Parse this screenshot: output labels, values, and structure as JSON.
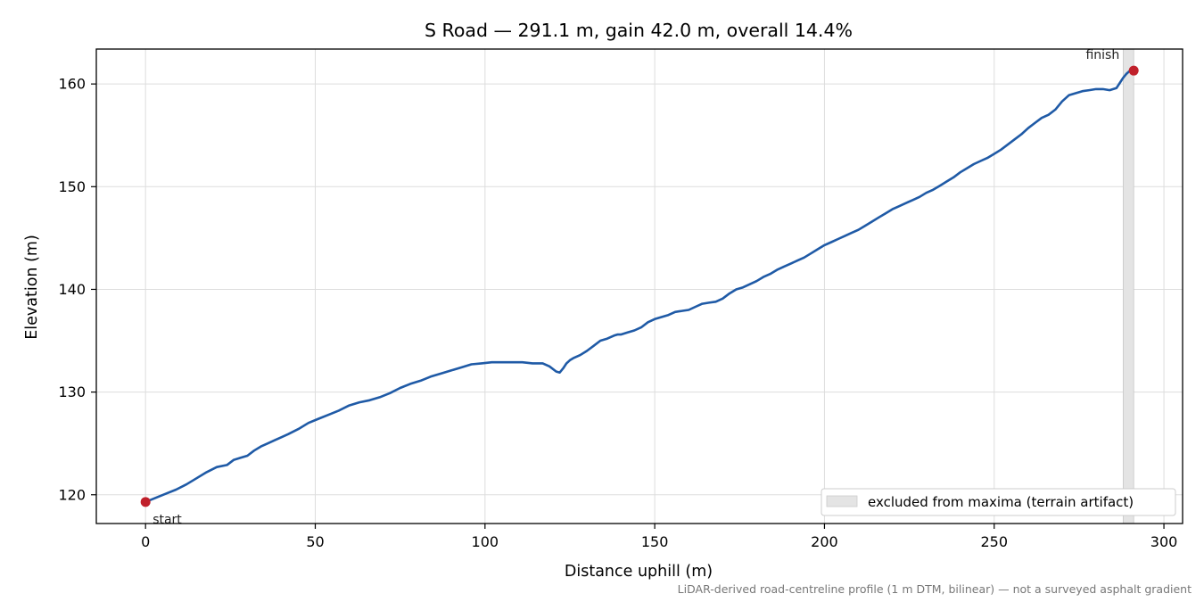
{
  "chart_data": {
    "type": "line",
    "title": "S Road — 291.1 m, gain 42.0 m, overall 14.4%",
    "xlabel": "Distance uphill (m)",
    "ylabel": "Elevation (m)",
    "xlim": [
      -14.5,
      305.5
    ],
    "ylim": [
      117.2,
      163.4
    ],
    "xticks": [
      0,
      50,
      100,
      150,
      200,
      250,
      300
    ],
    "yticks": [
      120,
      130,
      140,
      150,
      160
    ],
    "grid": true,
    "line_color": "#1f5aa6",
    "marker_color": "#c0202b",
    "span_color": "#e4e4e4",
    "series": [
      {
        "x": [
          0,
          3,
          6,
          9,
          12,
          15,
          18,
          21,
          24,
          26,
          28,
          30,
          32,
          34,
          36,
          38,
          40,
          42,
          45,
          48,
          51,
          54,
          57,
          60,
          63,
          66,
          69,
          72,
          75,
          78,
          81,
          84,
          87,
          90,
          93,
          96,
          99,
          102,
          105,
          108,
          111,
          114,
          117,
          119,
          121,
          122,
          123,
          124,
          125,
          126,
          128,
          130,
          132,
          134,
          136,
          138,
          139,
          140,
          142,
          144,
          146,
          148,
          150,
          152,
          154,
          156,
          158,
          160,
          162,
          164,
          166,
          168,
          170,
          172,
          174,
          176,
          178,
          180,
          182,
          184,
          186,
          188,
          190,
          192,
          194,
          196,
          198,
          200,
          202,
          204,
          206,
          208,
          210,
          212,
          214,
          216,
          218,
          220,
          222,
          224,
          226,
          228,
          230,
          232,
          234,
          236,
          238,
          240,
          242,
          244,
          246,
          248,
          250,
          252,
          254,
          256,
          258,
          260,
          262,
          264,
          266,
          268,
          270,
          272,
          274,
          276,
          278,
          280,
          282,
          284,
          286,
          287,
          288,
          289,
          290,
          291.1
        ],
        "y": [
          119.3,
          119.7,
          120.1,
          120.5,
          121.0,
          121.6,
          122.2,
          122.7,
          122.9,
          123.4,
          123.6,
          123.8,
          124.3,
          124.7,
          125.0,
          125.3,
          125.6,
          125.9,
          126.4,
          127.0,
          127.4,
          127.8,
          128.2,
          128.7,
          129.0,
          129.2,
          129.5,
          129.9,
          130.4,
          130.8,
          131.1,
          131.5,
          131.8,
          132.1,
          132.4,
          132.7,
          132.8,
          132.9,
          132.9,
          132.9,
          132.9,
          132.8,
          132.8,
          132.5,
          132.0,
          131.9,
          132.3,
          132.8,
          133.1,
          133.3,
          133.6,
          134.0,
          134.5,
          135.0,
          135.2,
          135.5,
          135.6,
          135.6,
          135.8,
          136.0,
          136.3,
          136.8,
          137.1,
          137.3,
          137.5,
          137.8,
          137.9,
          138.0,
          138.3,
          138.6,
          138.7,
          138.8,
          139.1,
          139.6,
          140.0,
          140.2,
          140.5,
          140.8,
          141.2,
          141.5,
          141.9,
          142.2,
          142.5,
          142.8,
          143.1,
          143.5,
          143.9,
          144.3,
          144.6,
          144.9,
          145.2,
          145.5,
          145.8,
          146.2,
          146.6,
          147.0,
          147.4,
          147.8,
          148.1,
          148.4,
          148.7,
          149.0,
          149.4,
          149.7,
          150.1,
          150.5,
          150.9,
          151.4,
          151.8,
          152.2,
          152.5,
          152.8,
          153.2,
          153.6,
          154.1,
          154.6,
          155.1,
          155.7,
          156.2,
          156.7,
          157.0,
          157.5,
          158.3,
          158.9,
          159.1,
          159.3,
          159.4,
          159.5,
          159.5,
          159.4,
          159.6,
          160.1,
          160.6,
          161.0,
          161.3,
          161.3
        ]
      }
    ],
    "points": [
      {
        "label": "start",
        "x": 0,
        "y": 119.3
      },
      {
        "label": "finish",
        "x": 291.1,
        "y": 161.3
      }
    ],
    "excluded_span": {
      "x_start": 288.0,
      "x_end": 291.1,
      "label": "excluded from maxima (terrain artifact)"
    },
    "legend_position": "lower right",
    "footnote": "LiDAR-derived road-centreline profile (1 m DTM, bilinear) — not a surveyed asphalt gradient"
  }
}
